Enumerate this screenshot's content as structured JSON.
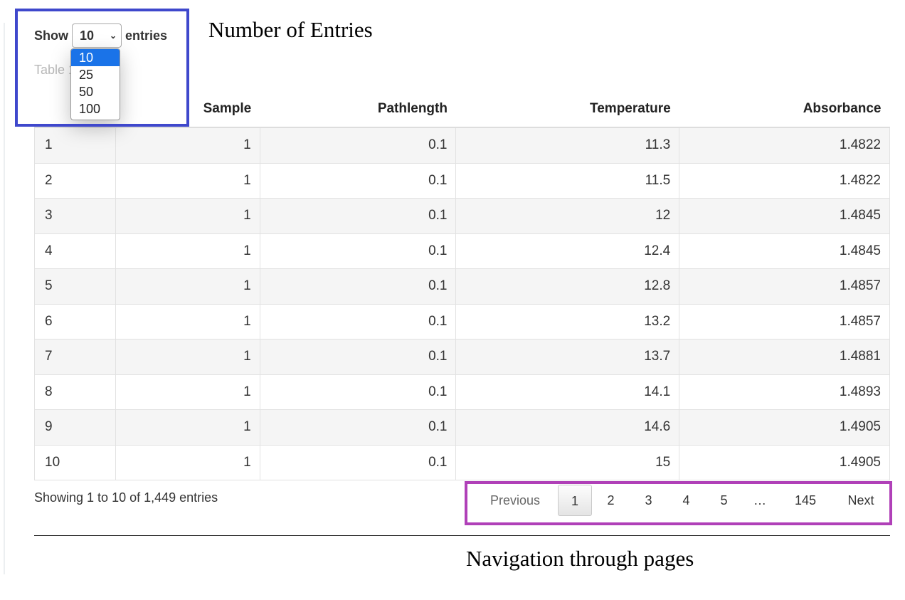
{
  "length_control": {
    "show_label": "Show",
    "selected_value": "10",
    "entries_label": "entries",
    "options": [
      "10",
      "25",
      "50",
      "100"
    ]
  },
  "caption": "Table 1: Part 1.",
  "table": {
    "columns": [
      "",
      "Sample",
      "Pathlength",
      "Temperature",
      "Absorbance"
    ],
    "rows": [
      [
        "1",
        "1",
        "0.1",
        "11.3",
        "1.4822"
      ],
      [
        "2",
        "1",
        "0.1",
        "11.5",
        "1.4822"
      ],
      [
        "3",
        "1",
        "0.1",
        "12",
        "1.4845"
      ],
      [
        "4",
        "1",
        "0.1",
        "12.4",
        "1.4845"
      ],
      [
        "5",
        "1",
        "0.1",
        "12.8",
        "1.4857"
      ],
      [
        "6",
        "1",
        "0.1",
        "13.2",
        "1.4857"
      ],
      [
        "7",
        "1",
        "0.1",
        "13.7",
        "1.4881"
      ],
      [
        "8",
        "1",
        "0.1",
        "14.1",
        "1.4893"
      ],
      [
        "9",
        "1",
        "0.1",
        "14.6",
        "1.4905"
      ],
      [
        "10",
        "1",
        "0.1",
        "15",
        "1.4905"
      ]
    ]
  },
  "info": "Showing 1 to 10 of 1,449 entries",
  "pagination": {
    "previous": "Previous",
    "pages": [
      "1",
      "2",
      "3",
      "4",
      "5",
      "…",
      "145"
    ],
    "current": "1",
    "next": "Next"
  },
  "annotations": {
    "top_label": "Number of Entries",
    "bottom_label": "Navigation through pages",
    "top_color": "#3f48cc",
    "bottom_color": "#b040b8"
  }
}
